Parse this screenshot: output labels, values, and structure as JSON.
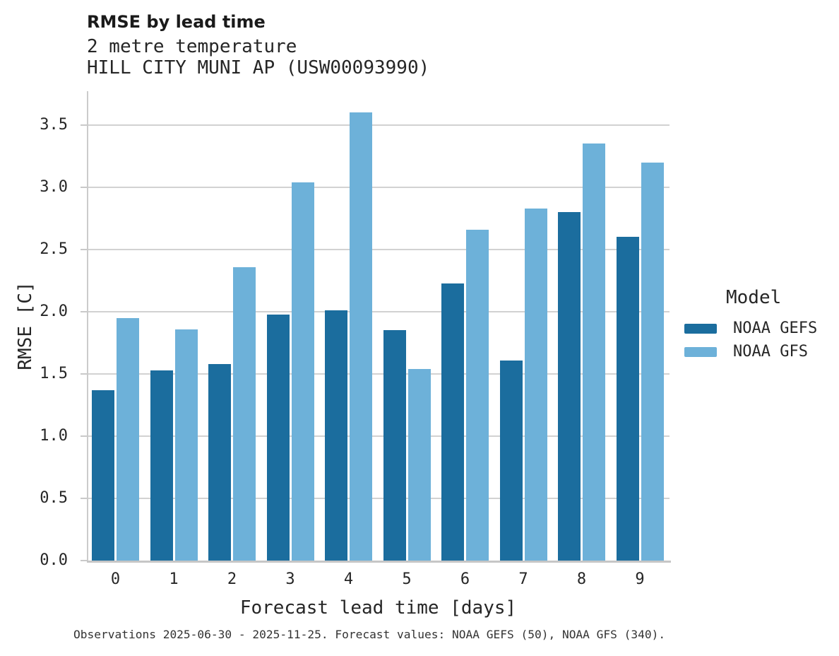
{
  "header": {
    "title": "RMSE by lead time",
    "subtitle_line1": "2 metre temperature",
    "subtitle_line2": "HILL CITY MUNI AP (USW00093990)"
  },
  "footer": {
    "caption": "Observations 2025-06-30 - 2025-11-25. Forecast values: NOAA GEFS (50), NOAA GFS (340)."
  },
  "legend": {
    "title": "Model",
    "entries": [
      {
        "label": "NOAA GEFS",
        "color": "#1b6d9e"
      },
      {
        "label": "NOAA GFS",
        "color": "#6db1d9"
      }
    ]
  },
  "colors": {
    "gefs": "#1b6d9e",
    "gfs": "#6db1d9",
    "grid": "#d2d2d2",
    "spine": "#cbcbcb",
    "text": "#262626"
  },
  "chart_data": {
    "type": "bar",
    "title": "RMSE by lead time",
    "subtitle": [
      "2 metre temperature",
      "HILL CITY MUNI AP (USW00093990)"
    ],
    "categories": [
      "0",
      "1",
      "2",
      "3",
      "4",
      "5",
      "6",
      "7",
      "8",
      "9"
    ],
    "series": [
      {
        "name": "NOAA GEFS",
        "color": "#1b6d9e",
        "values": [
          1.37,
          1.53,
          1.58,
          1.98,
          2.01,
          1.85,
          2.23,
          1.61,
          2.8,
          2.6
        ]
      },
      {
        "name": "NOAA GFS",
        "color": "#6db1d9",
        "values": [
          1.95,
          1.86,
          2.36,
          3.04,
          3.6,
          1.54,
          2.66,
          2.83,
          3.35,
          3.2
        ]
      }
    ],
    "xlabel": "Forecast lead time [days]",
    "ylabel": "RMSE [C]",
    "ylim": [
      0,
      3.77
    ],
    "yticks": [
      0.0,
      0.5,
      1.0,
      1.5,
      2.0,
      2.5,
      3.0,
      3.5
    ],
    "grid": true,
    "legend_title": "Model",
    "legend_position": "center right",
    "annotation": "Observations 2025-06-30 - 2025-11-25. Forecast values: NOAA GEFS (50), NOAA GFS (340)."
  }
}
